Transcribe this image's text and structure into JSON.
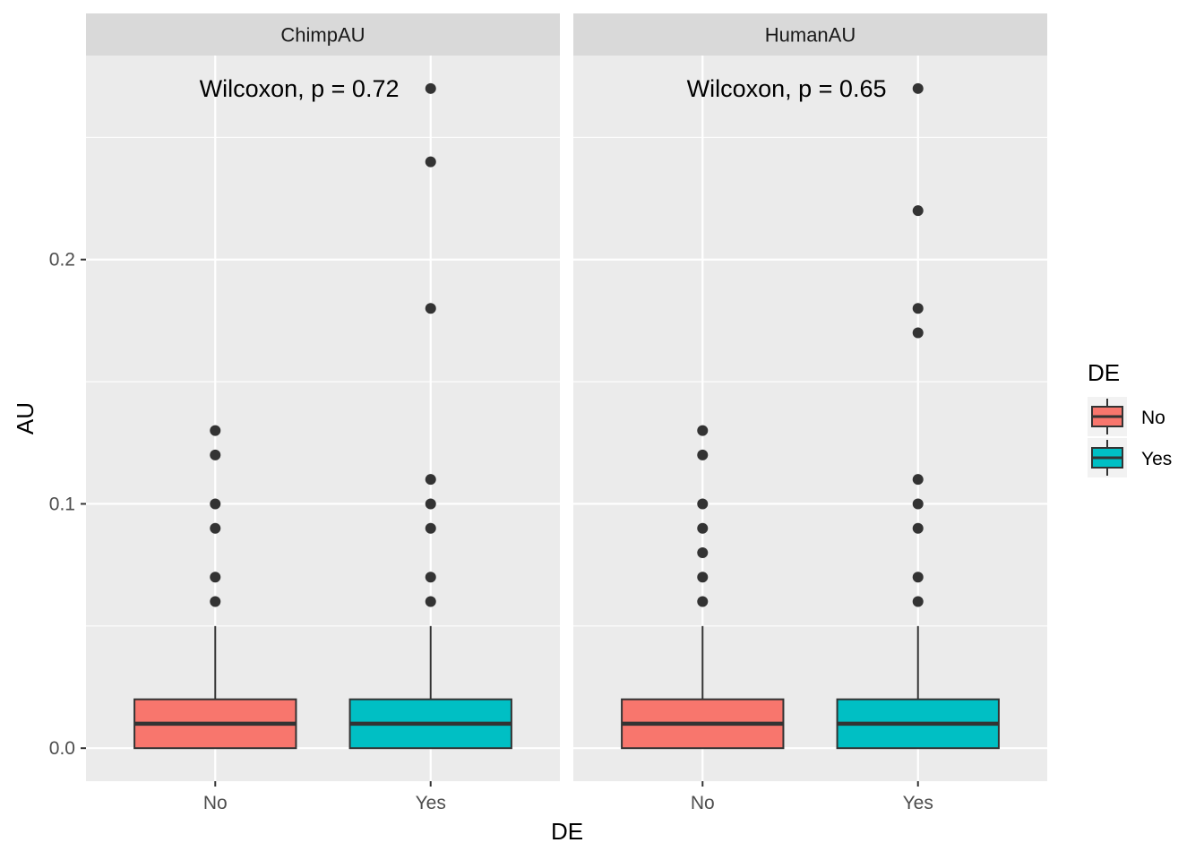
{
  "chart_data": {
    "type": "boxplot",
    "xlabel": "DE",
    "ylabel": "AU",
    "ylim": [
      -0.0135,
      0.2835
    ],
    "y_ticks": [
      0.0,
      0.1,
      0.2
    ],
    "y_tick_labels": [
      "0.0",
      "0.1",
      "0.2"
    ],
    "y_minor_ticks": [
      0.05,
      0.15,
      0.25
    ],
    "categories": [
      "No",
      "Yes"
    ],
    "grid": true,
    "legend": {
      "title": "DE",
      "position": "right",
      "entries": [
        {
          "label": "No",
          "color": "#F8766D"
        },
        {
          "label": "Yes",
          "color": "#00BFC4"
        }
      ]
    },
    "panels": [
      {
        "title": "ChimpAU",
        "annotation": "Wilcoxon, p = 0.72",
        "boxes": [
          {
            "category": "No",
            "color": "#F8766D",
            "whisker_low": 0.0,
            "q1": 0.0,
            "median": 0.01,
            "q3": 0.02,
            "whisker_high": 0.05,
            "outliers": [
              0.06,
              0.07,
              0.09,
              0.1,
              0.12,
              0.13
            ]
          },
          {
            "category": "Yes",
            "color": "#00BFC4",
            "whisker_low": 0.0,
            "q1": 0.0,
            "median": 0.01,
            "q3": 0.02,
            "whisker_high": 0.05,
            "outliers": [
              0.06,
              0.07,
              0.09,
              0.1,
              0.11,
              0.18,
              0.24,
              0.27
            ]
          }
        ]
      },
      {
        "title": "HumanAU",
        "annotation": "Wilcoxon, p = 0.65",
        "boxes": [
          {
            "category": "No",
            "color": "#F8766D",
            "whisker_low": 0.0,
            "q1": 0.0,
            "median": 0.01,
            "q3": 0.02,
            "whisker_high": 0.05,
            "outliers": [
              0.06,
              0.07,
              0.08,
              0.09,
              0.1,
              0.12,
              0.13
            ]
          },
          {
            "category": "Yes",
            "color": "#00BFC4",
            "whisker_low": 0.0,
            "q1": 0.0,
            "median": 0.01,
            "q3": 0.02,
            "whisker_high": 0.05,
            "outliers": [
              0.06,
              0.07,
              0.09,
              0.1,
              0.11,
              0.17,
              0.18,
              0.22,
              0.27
            ]
          }
        ]
      }
    ]
  }
}
